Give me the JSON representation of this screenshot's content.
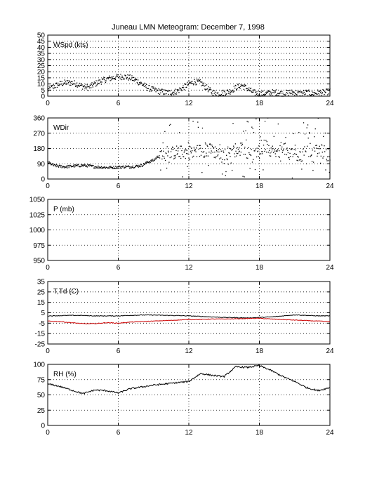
{
  "title": "Juneau LMN Meteogram:  December  7, 1998",
  "x_ticks": [
    "0",
    "6",
    "12",
    "18",
    "24"
  ],
  "chart_data": [
    {
      "type": "scatter",
      "label": "WSpd (kts)",
      "xlim": [
        0,
        24
      ],
      "ylim": [
        0,
        50
      ],
      "yticks": [
        "0",
        "5",
        "10",
        "15",
        "20",
        "25",
        "30",
        "35",
        "40",
        "45",
        "50"
      ],
      "grid": true,
      "series": [
        {
          "color": "#000000",
          "x": [
            0,
            0.5,
            1,
            1.5,
            2,
            2.5,
            3,
            3.5,
            4,
            4.5,
            5,
            5.5,
            6,
            6.5,
            7,
            7.5,
            8,
            8.5,
            9,
            9.5,
            10,
            10.5,
            11,
            11.5,
            12,
            12.5,
            13,
            13.5,
            14,
            14.5,
            15,
            15.5,
            16,
            16.5,
            17,
            17.5,
            18,
            18.5,
            19,
            19.5,
            20,
            20.5,
            21,
            21.5,
            22,
            22.5,
            23,
            23.5,
            24
          ],
          "y": [
            5,
            8,
            10,
            11,
            11,
            10,
            8,
            7,
            10,
            12,
            14,
            15,
            16,
            16,
            15,
            13,
            10,
            7,
            5,
            4,
            3,
            3,
            4,
            7,
            10,
            12,
            11,
            7,
            3,
            2,
            3,
            4,
            7,
            9,
            6,
            3,
            2,
            2,
            3,
            3,
            2,
            3,
            3,
            2,
            3,
            2,
            3,
            3,
            4
          ]
        }
      ]
    },
    {
      "type": "scatter",
      "label": "WDir",
      "xlim": [
        0,
        24
      ],
      "ylim": [
        0,
        360
      ],
      "yticks": [
        "0",
        "90",
        "180",
        "270",
        "360"
      ],
      "grid": true,
      "series": [
        {
          "color": "#000000",
          "x": [
            0,
            0.5,
            1,
            1.5,
            2,
            2.5,
            3,
            3.5,
            4,
            4.5,
            5,
            5.5,
            6,
            6.5,
            7,
            7.5,
            8,
            8.5,
            9,
            9.5,
            10,
            10.5,
            11,
            11.5,
            12,
            12.5,
            13,
            13.5,
            14,
            14.5,
            15,
            15.5,
            16,
            16.5,
            17,
            17.5,
            18,
            18.5,
            19,
            19.5,
            20,
            20.5,
            21,
            21.5,
            22,
            22.5,
            23,
            23.5,
            24
          ],
          "y": [
            100,
            80,
            75,
            72,
            75,
            78,
            80,
            78,
            72,
            70,
            68,
            68,
            70,
            72,
            72,
            75,
            80,
            100,
            110,
            140,
            140,
            150,
            160,
            155,
            160,
            165,
            165,
            170,
            170,
            150,
            130,
            170,
            170,
            180,
            160,
            130,
            150,
            200,
            170,
            140,
            200,
            130,
            170,
            120,
            180,
            140,
            170,
            160,
            130
          ]
        }
      ]
    },
    {
      "type": "line",
      "label": "P (mb)",
      "xlim": [
        0,
        24
      ],
      "ylim": [
        950,
        1050
      ],
      "yticks": [
        "950",
        "975",
        "1000",
        "1025",
        "1050"
      ],
      "grid": true,
      "series": []
    },
    {
      "type": "line",
      "label": "T,Td (C)",
      "xlim": [
        0,
        24
      ],
      "ylim": [
        -25,
        35
      ],
      "yticks": [
        "-25",
        "-15",
        "-5",
        "5",
        "15",
        "25",
        "35"
      ],
      "grid": true,
      "series": [
        {
          "color": "#000000",
          "x": [
            0,
            1,
            2,
            3,
            4,
            5,
            6,
            7,
            8,
            9,
            10,
            11,
            12,
            13,
            14,
            15,
            16,
            17,
            18,
            19,
            20,
            21,
            22,
            23,
            24
          ],
          "y": [
            2.0,
            2.2,
            2.5,
            2.4,
            2.0,
            2.0,
            2.0,
            2.5,
            2.8,
            2.8,
            2.5,
            2.3,
            2.0,
            1.5,
            1.0,
            0.5,
            0.3,
            0.0,
            0.5,
            1.0,
            2.0,
            3.0,
            2.5,
            2.0,
            2.0
          ]
        },
        {
          "color": "#cc0000",
          "x": [
            0,
            1,
            2,
            3,
            4,
            5,
            6,
            7,
            8,
            9,
            10,
            11,
            12,
            13,
            14,
            15,
            16,
            17,
            18,
            19,
            20,
            21,
            22,
            23,
            24
          ],
          "y": [
            -3.0,
            -3.5,
            -4.5,
            -5.5,
            -5.5,
            -4.5,
            -5.0,
            -4.0,
            -3.5,
            -3.0,
            -2.5,
            -2.0,
            -1.5,
            -1.5,
            -1.0,
            -1.0,
            -0.8,
            -0.5,
            -0.3,
            -1.0,
            -1.5,
            -2.0,
            -2.5,
            -3.0,
            -3.5
          ]
        }
      ]
    },
    {
      "type": "line",
      "label": "RH (%)",
      "xlim": [
        0,
        24
      ],
      "ylim": [
        0,
        100
      ],
      "yticks": [
        "0",
        "25",
        "50",
        "75",
        "100"
      ],
      "grid": true,
      "series": [
        {
          "color": "#000000",
          "x": [
            0,
            1,
            2,
            3,
            4,
            5,
            6,
            7,
            8,
            9,
            10,
            11,
            12,
            13,
            14,
            15,
            16,
            17,
            18,
            19,
            20,
            21,
            22,
            23,
            24
          ],
          "y": [
            68,
            64,
            58,
            52,
            58,
            57,
            53,
            60,
            63,
            66,
            68,
            70,
            72,
            85,
            82,
            80,
            96,
            95,
            98,
            90,
            80,
            72,
            62,
            57,
            62
          ]
        }
      ]
    }
  ]
}
